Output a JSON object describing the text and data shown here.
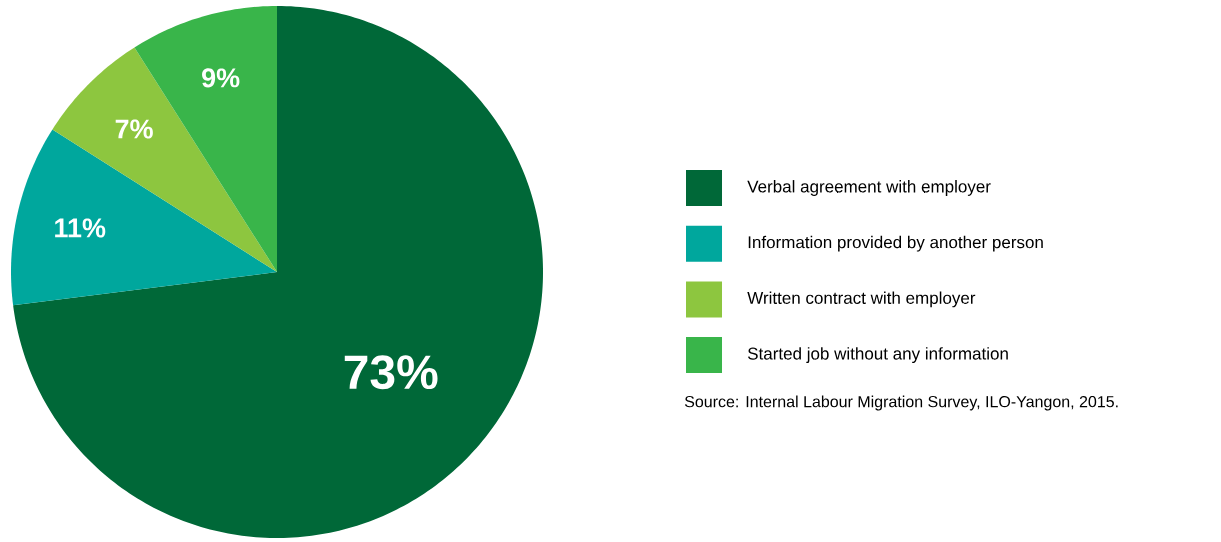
{
  "chart_data": {
    "type": "pie",
    "categories": [
      "Verbal agreement with employer",
      "Information provided by another person",
      "Written contract with employer",
      "Started job without any information"
    ],
    "values": [
      73,
      11,
      7,
      9
    ],
    "colors": [
      "#006838",
      "#00a79d",
      "#8dc63f",
      "#39b54a"
    ],
    "value_labels": [
      "73%",
      "11%",
      "7%",
      "9%"
    ],
    "legend": "right",
    "annotations": [
      "Source: Internal Labour Migration Survey, ILO-Yangon, 2015."
    ]
  }
}
